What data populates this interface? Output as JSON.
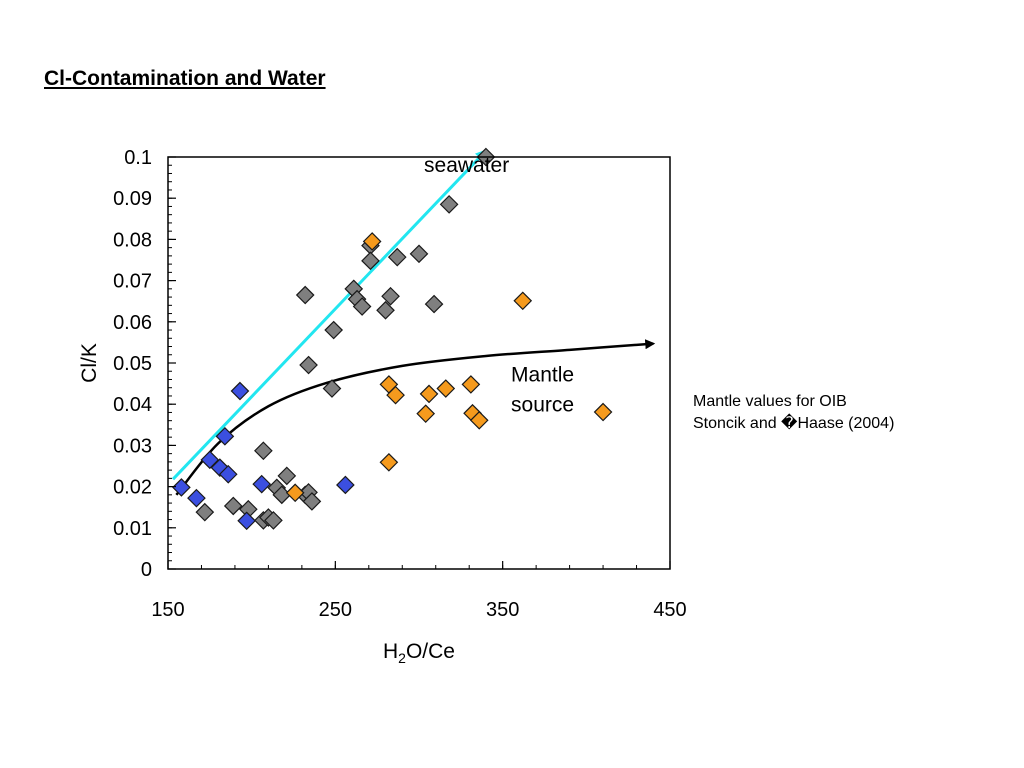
{
  "slide": {
    "title": "Cl-Contamination and Water",
    "note_line1": "Mantle values for OIB",
    "note_line2": "Stoncik and �Haase (2004)"
  },
  "chart_data": {
    "type": "scatter",
    "title": "",
    "xlabel": "H2O/Ce",
    "xlabel_main": "H",
    "xlabel_sub": "2",
    "xlabel_rest": "O/Ce",
    "ylabel": "Cl/K",
    "xlim": [
      150,
      450
    ],
    "ylim": [
      0,
      0.1
    ],
    "xticks": [
      150,
      250,
      350,
      450
    ],
    "xtick_labels": [
      "150",
      "250",
      "350",
      "450"
    ],
    "yticks": [
      0,
      0.01,
      0.02,
      0.03,
      0.04,
      0.05,
      0.06,
      0.07,
      0.08,
      0.09,
      0.1
    ],
    "ytick_labels": [
      "0",
      "0.01",
      "0.02",
      "0.03",
      "0.04",
      "0.05",
      "0.06",
      "0.07",
      "0.08",
      "0.09",
      "0.1"
    ],
    "grid": false,
    "marker": "diamond",
    "series": [
      {
        "color": "#7f7f7f",
        "points": [
          [
            340,
            0.1
          ],
          [
            318,
            0.0885
          ],
          [
            271,
            0.0785
          ],
          [
            300,
            0.0765
          ],
          [
            287,
            0.0757
          ],
          [
            271,
            0.0748
          ],
          [
            232,
            0.0665
          ],
          [
            261,
            0.068
          ],
          [
            263,
            0.0655
          ],
          [
            283,
            0.0662
          ],
          [
            266,
            0.0637
          ],
          [
            280,
            0.0628
          ],
          [
            309,
            0.0643
          ],
          [
            249,
            0.058
          ],
          [
            234,
            0.0495
          ],
          [
            248,
            0.0438
          ],
          [
            207,
            0.0287
          ],
          [
            172,
            0.0138
          ],
          [
            189,
            0.0153
          ],
          [
            198,
            0.0145
          ],
          [
            207,
            0.0118
          ],
          [
            210,
            0.0125
          ],
          [
            213,
            0.0118
          ],
          [
            215,
            0.0197
          ],
          [
            218,
            0.018
          ],
          [
            221,
            0.0226
          ],
          [
            232,
            0.018
          ],
          [
            234,
            0.0186
          ],
          [
            236,
            0.0164
          ]
        ]
      },
      {
        "color": "#3b4fe0",
        "points": [
          [
            158,
            0.0198
          ],
          [
            167,
            0.0172
          ],
          [
            175,
            0.0265
          ],
          [
            181,
            0.0246
          ],
          [
            184,
            0.0322
          ],
          [
            186,
            0.023
          ],
          [
            193,
            0.0432
          ],
          [
            197,
            0.0117
          ],
          [
            206,
            0.0206
          ],
          [
            256,
            0.0204
          ]
        ]
      },
      {
        "color": "#f59a1d",
        "points": [
          [
            272,
            0.0795
          ],
          [
            362,
            0.0651
          ],
          [
            282,
            0.0448
          ],
          [
            286,
            0.0422
          ],
          [
            306,
            0.0425
          ],
          [
            316,
            0.0438
          ],
          [
            331,
            0.0448
          ],
          [
            304,
            0.0377
          ],
          [
            332,
            0.0378
          ],
          [
            336,
            0.0361
          ],
          [
            410,
            0.0381
          ],
          [
            282,
            0.0259
          ],
          [
            226,
            0.0185
          ]
        ]
      }
    ],
    "annotations": [
      {
        "type": "arrow",
        "label": "seawater",
        "color": "#22e6f0",
        "from": [
          153,
          0.0218
        ],
        "to": [
          340,
          0.1015
        ],
        "label_at": [
          303,
          0.0964
        ]
      },
      {
        "type": "curve-arrow",
        "label_line1": "Mantle",
        "label_line2": "source",
        "color": "#000000",
        "points": [
          [
            155,
            0.018
          ],
          [
            180,
            0.0305
          ],
          [
            210,
            0.0395
          ],
          [
            245,
            0.0452
          ],
          [
            290,
            0.0493
          ],
          [
            340,
            0.0517
          ],
          [
            390,
            0.0532
          ],
          [
            440,
            0.0547
          ]
        ],
        "label_at": [
          355,
          0.0455
        ]
      }
    ]
  }
}
